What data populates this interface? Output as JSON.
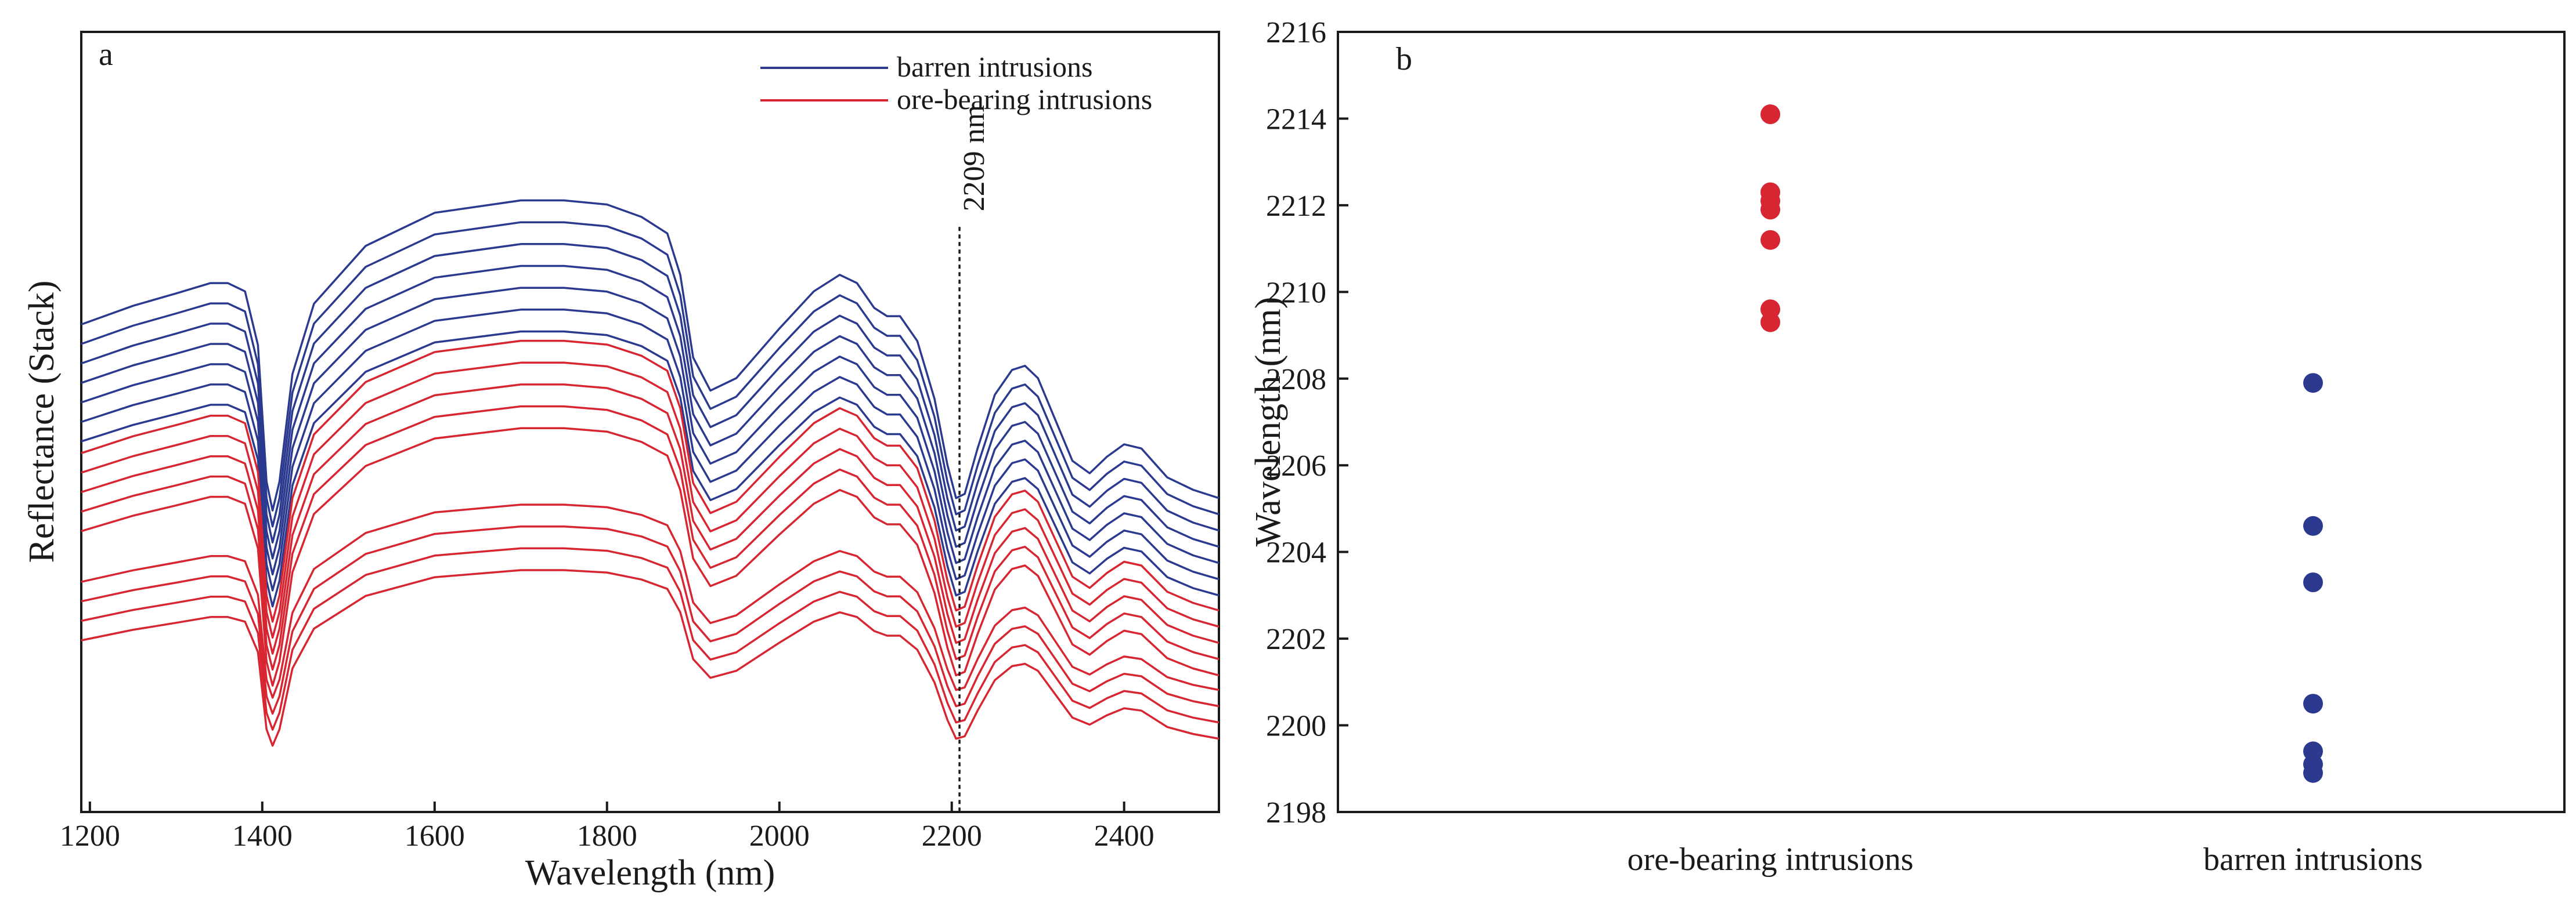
{
  "colors": {
    "barren": "#2b3a8f",
    "ore": "#d72631",
    "axis": "#1a1a1a"
  },
  "chart_data": [
    {
      "panel": "a",
      "type": "line",
      "title": "",
      "xlabel": "Wavelength (nm)",
      "ylabel": "Reflectance (Stack)",
      "xlim": [
        1190,
        2510
      ],
      "ylim": [
        0,
        1
      ],
      "xticks": [
        1200,
        1400,
        1600,
        1800,
        2000,
        2200,
        2400
      ],
      "annotation": {
        "x": 2209,
        "label": "2209 nm"
      },
      "legend": {
        "position": "top-right",
        "entries": [
          {
            "name": "barren intrusions",
            "color": "#2b3a8f"
          },
          {
            "name": "ore-bearing intrusions",
            "color": "#d72631"
          }
        ]
      },
      "profile_x": [
        1190,
        1250,
        1300,
        1340,
        1360,
        1380,
        1395,
        1405,
        1412,
        1420,
        1435,
        1460,
        1520,
        1600,
        1700,
        1750,
        1800,
        1840,
        1870,
        1885,
        1900,
        1920,
        1950,
        2000,
        2040,
        2070,
        2090,
        2110,
        2125,
        2140,
        2160,
        2180,
        2195,
        2205,
        2215,
        2230,
        2250,
        2270,
        2285,
        2300,
        2320,
        2340,
        2360,
        2380,
        2400,
        2420,
        2450,
        2480,
        2510
      ],
      "profile_y": [
        0.5,
        0.545,
        0.575,
        0.6,
        0.6,
        0.58,
        0.45,
        0.12,
        0.05,
        0.12,
        0.38,
        0.55,
        0.69,
        0.77,
        0.8,
        0.8,
        0.79,
        0.76,
        0.72,
        0.62,
        0.42,
        0.34,
        0.37,
        0.49,
        0.58,
        0.62,
        0.6,
        0.54,
        0.52,
        0.52,
        0.46,
        0.32,
        0.16,
        0.08,
        0.09,
        0.2,
        0.33,
        0.39,
        0.4,
        0.37,
        0.27,
        0.17,
        0.14,
        0.18,
        0.21,
        0.2,
        0.13,
        0.1,
        0.08
      ],
      "series_note": "each spectrum = offset + amp * profile",
      "series": [
        {
          "name": "barren intrusions",
          "group": "barren",
          "offset": 0.36,
          "amp": 0.53
        },
        {
          "name": "barren intrusions",
          "group": "barren",
          "offset": 0.34,
          "amp": 0.52
        },
        {
          "name": "barren intrusions",
          "group": "barren",
          "offset": 0.32,
          "amp": 0.51
        },
        {
          "name": "barren intrusions",
          "group": "barren",
          "offset": 0.3,
          "amp": 0.5
        },
        {
          "name": "barren intrusions",
          "group": "barren",
          "offset": 0.28,
          "amp": 0.49
        },
        {
          "name": "barren intrusions",
          "group": "barren",
          "offset": 0.26,
          "amp": 0.48
        },
        {
          "name": "barren intrusions",
          "group": "barren",
          "offset": 0.24,
          "amp": 0.47
        },
        {
          "name": "ore-bearing intrusions",
          "group": "ore",
          "offset": 0.22,
          "amp": 0.48
        },
        {
          "name": "ore-bearing intrusions",
          "group": "ore",
          "offset": 0.2,
          "amp": 0.47
        },
        {
          "name": "ore-bearing intrusions",
          "group": "ore",
          "offset": 0.18,
          "amp": 0.46
        },
        {
          "name": "ore-bearing intrusions",
          "group": "ore",
          "offset": 0.16,
          "amp": 0.45
        },
        {
          "name": "ore-bearing intrusions",
          "group": "ore",
          "offset": 0.14,
          "amp": 0.44
        },
        {
          "name": "ore-bearing intrusions",
          "group": "ore",
          "offset": 0.13,
          "amp": 0.33
        },
        {
          "name": "ore-bearing intrusions",
          "group": "ore",
          "offset": 0.11,
          "amp": 0.32
        },
        {
          "name": "ore-bearing intrusions",
          "group": "ore",
          "offset": 0.09,
          "amp": 0.31
        },
        {
          "name": "ore-bearing intrusions",
          "group": "ore",
          "offset": 0.07,
          "amp": 0.3
        }
      ]
    },
    {
      "panel": "b",
      "type": "scatter",
      "title": "",
      "xlabel": "",
      "ylabel": "Wavelength (nm)",
      "ylim": [
        2198,
        2216
      ],
      "yticks": [
        2198,
        2200,
        2202,
        2204,
        2206,
        2208,
        2210,
        2212,
        2214,
        2216
      ],
      "categories": [
        "ore-bearing intrusions",
        "barren intrusions"
      ],
      "series": [
        {
          "name": "ore-bearing intrusions",
          "color": "#d72631",
          "values": [
            2214.1,
            2212.3,
            2212.1,
            2211.9,
            2211.2,
            2209.6,
            2209.3
          ]
        },
        {
          "name": "barren intrusions",
          "color": "#2b3a8f",
          "values": [
            2207.9,
            2204.6,
            2203.3,
            2200.5,
            2199.4,
            2199.1,
            2198.9
          ]
        }
      ]
    }
  ]
}
